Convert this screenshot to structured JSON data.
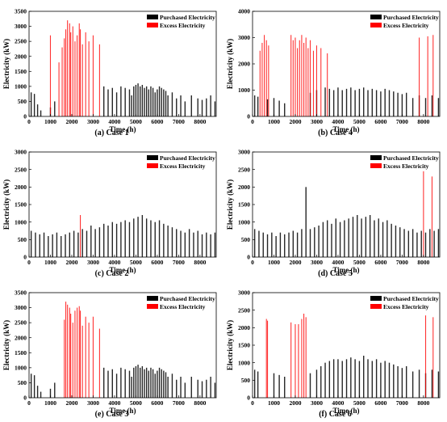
{
  "figure": {
    "series_names": [
      "Purchased Electricity",
      "Excess Electricity"
    ],
    "series_colors": {
      "purchased": "#000000",
      "excess": "#ff0000"
    },
    "xlabel": "Time (h)",
    "ylabel": "Electricity (kW)"
  },
  "chart_data": [
    {
      "type": "bar",
      "caption": "(a) Case 1",
      "xlabel": "Time (h)",
      "ylabel": "Electricity (kW)",
      "xlim": [
        0,
        8760
      ],
      "ylim": [
        0,
        3500
      ],
      "xticks": [
        0,
        1000,
        2000,
        3000,
        4000,
        5000,
        6000,
        7000,
        8000
      ],
      "yticks": [
        0,
        500,
        1000,
        1500,
        2000,
        2500,
        3000,
        3500
      ],
      "legend": "top-right",
      "series": [
        {
          "name": "Purchased Electricity",
          "color": "#000000",
          "x": [
            100,
            250,
            400,
            550,
            1000,
            1200,
            3500,
            3700,
            3900,
            4100,
            4300,
            4500,
            4700,
            4800,
            4900,
            5000,
            5100,
            5200,
            5300,
            5400,
            5500,
            5600,
            5700,
            5800,
            5900,
            6000,
            6100,
            6200,
            6300,
            6400,
            6500,
            6700,
            6900,
            7100,
            7300,
            7600,
            7900,
            8100,
            8300,
            8500,
            8700
          ],
          "values": [
            800,
            750,
            400,
            200,
            300,
            500,
            1000,
            900,
            950,
            800,
            1000,
            950,
            900,
            700,
            1000,
            1050,
            1100,
            1000,
            1050,
            950,
            1000,
            900,
            1000,
            950,
            800,
            900,
            1000,
            950,
            900,
            850,
            700,
            800,
            600,
            700,
            500,
            700,
            600,
            550,
            600,
            700,
            500
          ]
        },
        {
          "name": "Excess Electricity",
          "color": "#ff0000",
          "x": [
            1000,
            1400,
            1550,
            1650,
            1720,
            1800,
            1900,
            1950,
            2050,
            2150,
            2250,
            2350,
            2400,
            2500,
            2650,
            2800,
            3000,
            3300
          ],
          "values": [
            2700,
            1800,
            2300,
            2600,
            2900,
            3200,
            3100,
            2800,
            3000,
            2500,
            2700,
            3100,
            2900,
            2400,
            2800,
            2500,
            2700,
            2400
          ]
        }
      ]
    },
    {
      "type": "bar",
      "caption": "(b) Case 4",
      "xlabel": "Time (h)",
      "ylabel": "Electricity (kW)",
      "xlim": [
        0,
        8760
      ],
      "ylim": [
        0,
        4000
      ],
      "xticks": [
        0,
        1000,
        2000,
        3000,
        4000,
        5000,
        6000,
        7000,
        8000
      ],
      "yticks": [
        0,
        1000,
        2000,
        3000,
        4000
      ],
      "legend": "top-right",
      "series": [
        {
          "name": "Purchased Electricity",
          "color": "#000000",
          "x": [
            100,
            250,
            700,
            1000,
            1250,
            1500,
            2700,
            3000,
            3400,
            3600,
            3800,
            4000,
            4200,
            4400,
            4600,
            4800,
            5000,
            5200,
            5400,
            5600,
            5800,
            6000,
            6200,
            6400,
            6600,
            6800,
            7000,
            7200,
            7500,
            7800,
            8100,
            8400,
            8700
          ],
          "values": [
            800,
            750,
            650,
            700,
            600,
            500,
            900,
            1000,
            1100,
            1050,
            1000,
            1100,
            1000,
            1050,
            1100,
            1000,
            1050,
            1100,
            1000,
            1050,
            1000,
            950,
            1050,
            1000,
            950,
            900,
            850,
            900,
            700,
            800,
            700,
            800,
            700
          ]
        },
        {
          "name": "Excess Electricity",
          "color": "#ff0000",
          "x": [
            350,
            450,
            550,
            650,
            750,
            1800,
            1900,
            2000,
            2100,
            2200,
            2300,
            2400,
            2500,
            2600,
            2700,
            2850,
            3000,
            3200,
            3500,
            7800,
            8200,
            8450
          ],
          "values": [
            2500,
            2800,
            3100,
            2900,
            2700,
            3100,
            2900,
            3000,
            2600,
            2900,
            3100,
            2800,
            3000,
            2600,
            2900,
            2500,
            2700,
            2600,
            2400,
            3000,
            3050,
            3100
          ]
        }
      ]
    },
    {
      "type": "bar",
      "caption": "(c) Case 2",
      "xlabel": "Time (h)",
      "ylabel": "Electricity (kW)",
      "xlim": [
        0,
        8760
      ],
      "ylim": [
        0,
        3000
      ],
      "xticks": [
        0,
        1000,
        2000,
        3000,
        4000,
        5000,
        6000,
        7000,
        8000
      ],
      "yticks": [
        0,
        500,
        1000,
        1500,
        2000,
        2500,
        3000
      ],
      "legend": "top-right",
      "series": [
        {
          "name": "Purchased Electricity",
          "color": "#000000",
          "x": [
            100,
            300,
            500,
            700,
            900,
            1100,
            1300,
            1500,
            1700,
            1900,
            2100,
            2300,
            2500,
            2700,
            2900,
            3100,
            3300,
            3500,
            3700,
            3900,
            4100,
            4300,
            4500,
            4700,
            4900,
            5100,
            5300,
            5500,
            5700,
            5900,
            6100,
            6300,
            6500,
            6700,
            6900,
            7100,
            7300,
            7500,
            7700,
            7900,
            8100,
            8300,
            8500,
            8700
          ],
          "values": [
            750,
            700,
            650,
            700,
            600,
            650,
            700,
            600,
            650,
            700,
            750,
            700,
            800,
            750,
            900,
            800,
            850,
            950,
            900,
            1000,
            950,
            1000,
            1050,
            1000,
            1100,
            1150,
            1200,
            1100,
            1050,
            1000,
            1050,
            950,
            900,
            850,
            800,
            750,
            700,
            800,
            700,
            750,
            650,
            700,
            650,
            700
          ]
        },
        {
          "name": "Excess Electricity",
          "color": "#ff0000",
          "x": [
            2400
          ],
          "values": [
            1200
          ]
        }
      ]
    },
    {
      "type": "bar",
      "caption": "(d) Case 5",
      "xlabel": "Time (h)",
      "ylabel": "Electricity (kW)",
      "xlim": [
        0,
        8760
      ],
      "ylim": [
        0,
        3000
      ],
      "xticks": [
        0,
        1000,
        2000,
        3000,
        4000,
        5000,
        6000,
        7000,
        8000
      ],
      "yticks": [
        0,
        500,
        1000,
        1500,
        2000,
        2500,
        3000
      ],
      "legend": "top-right",
      "series": [
        {
          "name": "Purchased Electricity",
          "color": "#000000",
          "x": [
            100,
            300,
            500,
            700,
            900,
            1100,
            1300,
            1500,
            1700,
            1900,
            2100,
            2300,
            2500,
            2700,
            2900,
            3100,
            3300,
            3500,
            3700,
            3900,
            4100,
            4300,
            4500,
            4700,
            4900,
            5100,
            5300,
            5500,
            5700,
            5900,
            6100,
            6300,
            6500,
            6700,
            6900,
            7100,
            7300,
            7500,
            7700,
            7900,
            8100,
            8300,
            8500,
            8700
          ],
          "values": [
            800,
            750,
            700,
            650,
            700,
            600,
            700,
            650,
            700,
            750,
            700,
            800,
            2000,
            800,
            850,
            900,
            1000,
            1050,
            950,
            1100,
            1000,
            1050,
            1100,
            1150,
            1200,
            1100,
            1150,
            1200,
            1050,
            1100,
            1000,
            1050,
            950,
            900,
            850,
            800,
            750,
            800,
            700,
            750,
            700,
            800,
            750,
            800
          ]
        },
        {
          "name": "Excess Electricity",
          "color": "#ff0000",
          "x": [
            8000,
            8400
          ],
          "values": [
            2450,
            2300
          ]
        }
      ]
    },
    {
      "type": "bar",
      "caption": "(e) Case 3",
      "xlabel": "Time (h)",
      "ylabel": "Electricity (kW)",
      "xlim": [
        0,
        8760
      ],
      "ylim": [
        0,
        3500
      ],
      "xticks": [
        0,
        1000,
        2000,
        3000,
        4000,
        5000,
        6000,
        7000,
        8000
      ],
      "yticks": [
        0,
        500,
        1000,
        1500,
        2000,
        2500,
        3000,
        3500
      ],
      "legend": "top-right",
      "series": [
        {
          "name": "Purchased Electricity",
          "color": "#000000",
          "x": [
            100,
            250,
            400,
            550,
            1000,
            1200,
            3500,
            3700,
            3900,
            4100,
            4300,
            4500,
            4700,
            4800,
            4900,
            5000,
            5100,
            5200,
            5300,
            5400,
            5500,
            5600,
            5700,
            5800,
            5900,
            6000,
            6100,
            6200,
            6300,
            6400,
            6500,
            6700,
            6900,
            7100,
            7300,
            7600,
            7900,
            8100,
            8300,
            8500,
            8700
          ],
          "values": [
            800,
            750,
            400,
            200,
            300,
            500,
            1000,
            900,
            950,
            800,
            1000,
            950,
            900,
            700,
            1000,
            1050,
            1100,
            1000,
            1050,
            950,
            1000,
            900,
            1000,
            950,
            800,
            900,
            1000,
            950,
            900,
            850,
            700,
            800,
            600,
            700,
            500,
            700,
            600,
            550,
            600,
            700,
            500
          ]
        },
        {
          "name": "Excess Electricity",
          "color": "#ff0000",
          "x": [
            1650,
            1720,
            1800,
            1900,
            1950,
            2050,
            2150,
            2250,
            2350,
            2400,
            2500,
            2650,
            2800,
            3000,
            3300
          ],
          "values": [
            2600,
            3200,
            3100,
            3000,
            2800,
            2500,
            2900,
            3000,
            3050,
            2900,
            2400,
            2700,
            2500,
            2700,
            2300
          ]
        }
      ]
    },
    {
      "type": "bar",
      "caption": "(f) Case 6",
      "xlabel": "Time (h)",
      "ylabel": "Electricity (kW)",
      "xlim": [
        0,
        8760
      ],
      "ylim": [
        0,
        3000
      ],
      "xticks": [
        0,
        1000,
        2000,
        3000,
        4000,
        5000,
        6000,
        7000,
        8000
      ],
      "yticks": [
        0,
        500,
        1000,
        1500,
        2000,
        2500,
        3000
      ],
      "legend": "top-right",
      "series": [
        {
          "name": "Purchased Electricity",
          "color": "#000000",
          "x": [
            100,
            250,
            1000,
            1250,
            1500,
            2700,
            3000,
            3200,
            3400,
            3600,
            3800,
            4000,
            4200,
            4400,
            4600,
            4800,
            5000,
            5200,
            5400,
            5600,
            5800,
            6000,
            6200,
            6400,
            6600,
            6800,
            7000,
            7200,
            7500,
            7800,
            8100,
            8400,
            8700
          ],
          "values": [
            800,
            750,
            700,
            650,
            600,
            700,
            800,
            900,
            1000,
            1050,
            1100,
            1100,
            1050,
            1100,
            1150,
            1100,
            1050,
            1200,
            1100,
            1050,
            1100,
            1000,
            1050,
            1000,
            950,
            900,
            850,
            900,
            750,
            800,
            700,
            800,
            750
          ]
        },
        {
          "name": "Excess Electricity",
          "color": "#ff0000",
          "x": [
            650,
            700,
            1800,
            2000,
            2150,
            2300,
            2400,
            2500,
            8100,
            8450
          ],
          "values": [
            2250,
            2200,
            2150,
            2100,
            2100,
            2250,
            2400,
            2300,
            2350,
            2300
          ]
        }
      ]
    }
  ]
}
